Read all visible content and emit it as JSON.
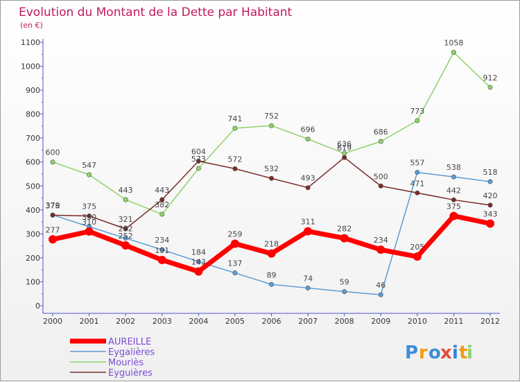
{
  "colors": {
    "title": "#c2185b",
    "axis": "#5050d0",
    "aureille": "#ff0000",
    "eygalieres": "#5b9bd5",
    "mouries": "#8fd16a",
    "eyguieres": "#7a2a2a",
    "legend_text": "#7b4bd6"
  },
  "chart_data": {
    "type": "line",
    "title": "Evolution du Montant de la Dette par Habitant",
    "subtitle": "(en €)",
    "x": [
      "2000",
      "2001",
      "2002",
      "2003",
      "2004",
      "2005",
      "2006",
      "2007",
      "2008",
      "2009",
      "2010",
      "2011",
      "2012"
    ],
    "ylim": [
      0,
      1100
    ],
    "yticks": [
      0,
      100,
      200,
      300,
      400,
      500,
      600,
      700,
      800,
      900,
      1000,
      1100
    ],
    "grid": false,
    "legend_position": "bottom-left",
    "series": [
      {
        "name": "AUREILLE",
        "color": "#ff0000",
        "values": [
          277,
          310,
          252,
          191,
          143,
          259,
          218,
          311,
          282,
          234,
          205,
          375,
          343
        ]
      },
      {
        "name": "Eygalières",
        "color": "#5b9bd5",
        "values": [
          379,
          330,
          282,
          234,
          184,
          137,
          89,
          74,
          59,
          46,
          557,
          538,
          518
        ]
      },
      {
        "name": "Mouriès",
        "color": "#8fd16a",
        "values": [
          600,
          547,
          443,
          382,
          573,
          741,
          752,
          696,
          636,
          686,
          773,
          1058,
          912
        ]
      },
      {
        "name": "Eyguières",
        "color": "#7a2a2a",
        "values": [
          378,
          375,
          321,
          443,
          604,
          572,
          532,
          493,
          619,
          500,
          471,
          442,
          420
        ]
      }
    ]
  },
  "logo": {
    "letters": [
      "P",
      "r",
      "o",
      "x",
      "i",
      "t",
      "i"
    ],
    "colors": [
      "#3b8ed8",
      "#f39c12",
      "#3b8ed8",
      "#e74c3c",
      "#2e86de",
      "#f39c12",
      "#8fd16a"
    ]
  }
}
